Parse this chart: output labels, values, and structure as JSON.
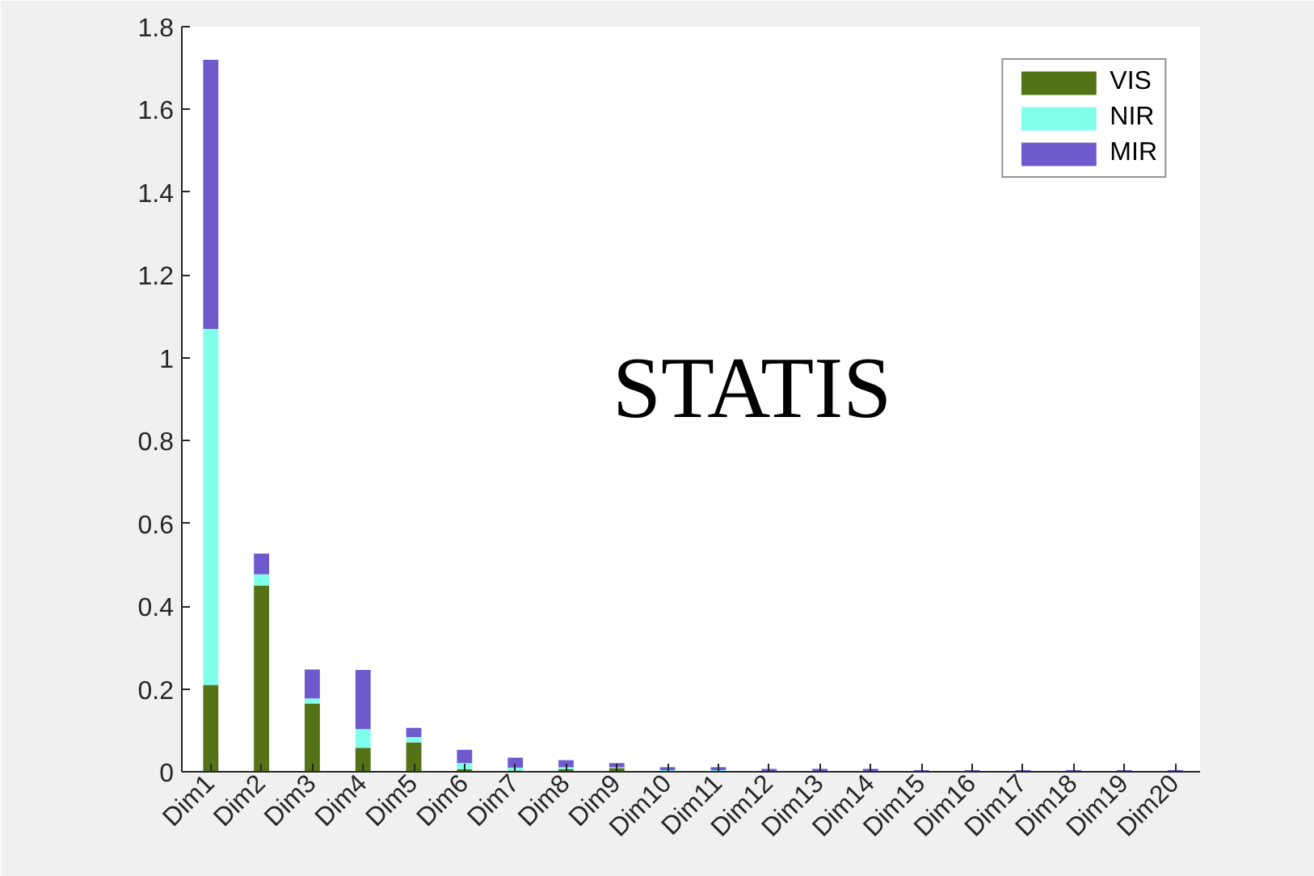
{
  "chart_data": {
    "type": "bar",
    "stacked": true,
    "categories": [
      "Dim1",
      "Dim2",
      "Dim3",
      "Dim4",
      "Dim5",
      "Dim6",
      "Dim7",
      "Dim8",
      "Dim9",
      "Dim10",
      "Dim11",
      "Dim12",
      "Dim13",
      "Dim14",
      "Dim15",
      "Dim16",
      "Dim17",
      "Dim18",
      "Dim19",
      "Dim20"
    ],
    "series": [
      {
        "name": "VIS",
        "color": "#537316",
        "values": [
          0.21,
          0.45,
          0.165,
          0.058,
          0.071,
          0.006,
          0.003,
          0.006,
          0.009,
          0.002,
          0.002,
          0.001,
          0.001,
          0.001,
          0.001,
          0.001,
          0.001,
          0.001,
          0.001,
          0.001
        ]
      },
      {
        "name": "NIR",
        "color": "#80ffea",
        "values": [
          0.86,
          0.027,
          0.012,
          0.045,
          0.013,
          0.015,
          0.007,
          0.005,
          0.002,
          0.002,
          0.002,
          0.001,
          0.001,
          0.001,
          0.001,
          0.001,
          0.001,
          0.001,
          0.001,
          0.001
        ]
      },
      {
        "name": "MIR",
        "color": "#6f5acd",
        "values": [
          0.65,
          0.05,
          0.07,
          0.143,
          0.022,
          0.032,
          0.024,
          0.017,
          0.01,
          0.007,
          0.007,
          0.005,
          0.005,
          0.005,
          0.002,
          0.002,
          0.002,
          0.002,
          0.002,
          0.002
        ]
      }
    ],
    "ylim": [
      0,
      1.8
    ],
    "yticks": [
      0,
      0.2,
      0.4,
      0.6,
      0.8,
      1,
      1.2,
      1.4,
      1.6,
      1.8
    ],
    "legend": "top right",
    "grid": false,
    "annotations": [
      "STATIS"
    ]
  }
}
